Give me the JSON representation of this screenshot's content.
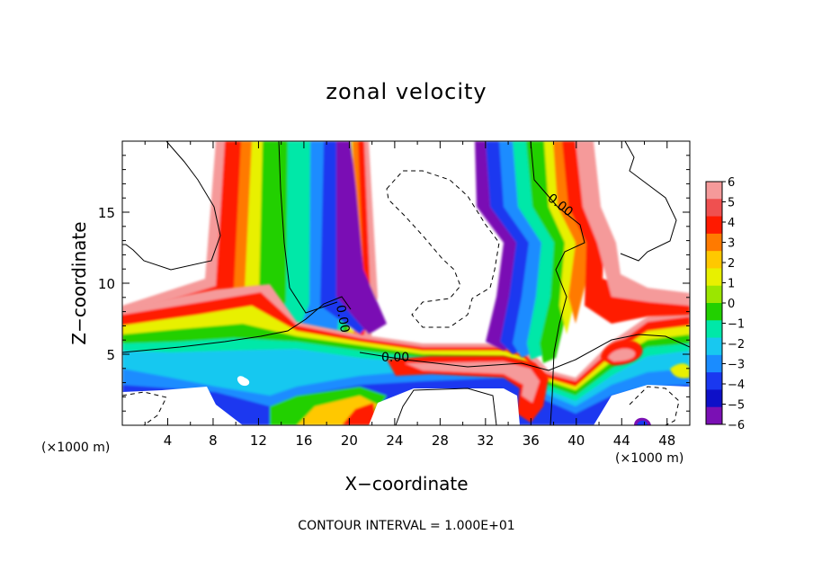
{
  "chart_data": {
    "type": "heatmap",
    "title": "zonal velocity",
    "xlabel": "X−coordinate",
    "ylabel": "Z−coordinate",
    "x_unit_label": "(×1000 m)",
    "note": "CONTOUR INTERVAL = 1.000E+01",
    "xlim": [
      0,
      50
    ],
    "ylim": [
      0,
      20
    ],
    "x_ticks": [
      4,
      8,
      12,
      16,
      20,
      24,
      28,
      32,
      36,
      40,
      44,
      48
    ],
    "y_ticks": [
      5,
      10,
      15
    ],
    "colorbar": {
      "levels": [
        6,
        5,
        4,
        3,
        2,
        1,
        0,
        -1,
        -2,
        -3,
        -4,
        -5,
        -6
      ],
      "labels": [
        "6",
        "5",
        "4",
        "3",
        "2",
        "1",
        "0",
        "−1",
        "−2",
        "−3",
        "−4",
        "−5",
        "−6"
      ],
      "colors": [
        "#f59a9a",
        "#ef5050",
        "#ff1a00",
        "#ff7a00",
        "#ffc800",
        "#e8f000",
        "#9be600",
        "#22d000",
        "#00e8a8",
        "#18c8f0",
        "#1a8cff",
        "#1a38f0",
        "#0e10c8",
        "#7a10b4"
      ]
    },
    "contour_labels": [
      "0.00",
      "0.00",
      "0.00"
    ],
    "grid": false,
    "legend": "colorbar right"
  }
}
